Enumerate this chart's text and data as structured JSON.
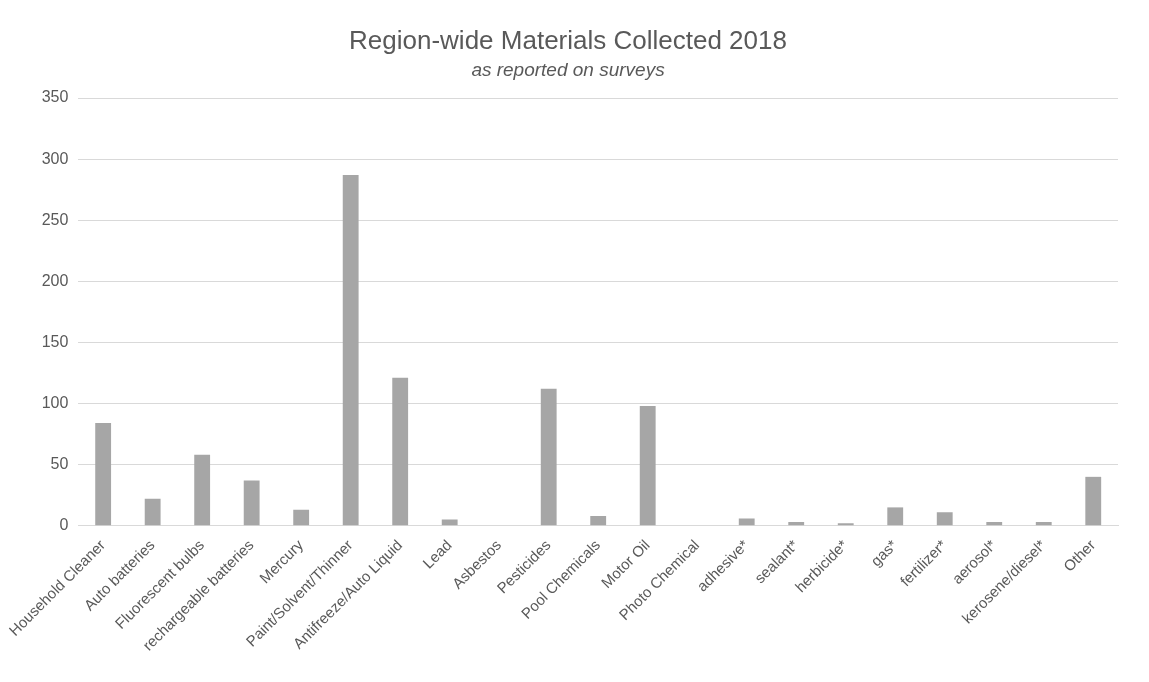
{
  "chart_data": {
    "type": "bar",
    "title": "Region-wide Materials Collected 2018",
    "subtitle": "as reported on surveys",
    "categories": [
      "Household Cleaner",
      "Auto batteries",
      "Fluorescent bulbs",
      "rechargeable batteries",
      "Mercury",
      "Paint/Solvent/Thinner",
      "Antifreeze/Auto Liquid",
      "Lead",
      "Asbestos",
      "Pesticides",
      "Pool Chemicals",
      "Motor Oil",
      "Photo Chemical",
      "adhesive*",
      "sealant*",
      "herbicide*",
      "gas*",
      "fertilizer*",
      "aerosol*",
      "kerosene/diesel*",
      "Other"
    ],
    "values": [
      84,
      22,
      58,
      37,
      13,
      287,
      121,
      5,
      0,
      112,
      8,
      98,
      0,
      6,
      3,
      2,
      15,
      11,
      3,
      3,
      40
    ],
    "color": "#a6a6a6",
    "ylim": [
      0,
      350
    ],
    "yticks": [
      0,
      50,
      100,
      150,
      200,
      250,
      300,
      350
    ],
    "grid": "y",
    "legend": false
  }
}
